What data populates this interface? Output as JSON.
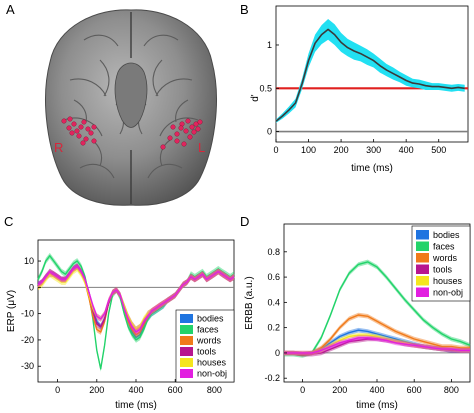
{
  "panels": {
    "A": "A",
    "B": "B",
    "C": "C",
    "D": "D"
  },
  "brain": {
    "right_label": "R",
    "left_label": "L",
    "electrode_color": "#e0245e"
  },
  "chart_data": [
    {
      "panel": "B",
      "type": "line",
      "xlabel": "time (ms)",
      "ylabel": "d'",
      "xlim": [
        0,
        590
      ],
      "ylim": [
        -0.12,
        1.45
      ],
      "xticks": [
        0,
        100,
        200,
        300,
        400,
        500
      ],
      "yticks": [
        0,
        0.5,
        1
      ],
      "series": [
        {
          "color": "#3a3a3a",
          "band_color": "#22e0f2",
          "x": [
            0,
            20,
            40,
            60,
            80,
            100,
            120,
            140,
            160,
            180,
            200,
            220,
            240,
            260,
            280,
            300,
            320,
            340,
            360,
            380,
            400,
            420,
            440,
            460,
            480,
            500,
            520,
            540,
            560,
            580
          ],
          "y": [
            0.12,
            0.18,
            0.25,
            0.33,
            0.55,
            0.82,
            1.02,
            1.12,
            1.18,
            1.12,
            1.03,
            0.97,
            0.93,
            0.9,
            0.86,
            0.82,
            0.76,
            0.71,
            0.67,
            0.63,
            0.59,
            0.56,
            0.55,
            0.53,
            0.52,
            0.52,
            0.51,
            0.5,
            0.51,
            0.5
          ],
          "err": [
            0.02,
            0.03,
            0.04,
            0.05,
            0.06,
            0.08,
            0.1,
            0.11,
            0.12,
            0.12,
            0.11,
            0.1,
            0.1,
            0.09,
            0.09,
            0.08,
            0.08,
            0.07,
            0.07,
            0.06,
            0.06,
            0.05,
            0.05,
            0.05,
            0.04,
            0.04,
            0.04,
            0.04,
            0.04,
            0.04
          ]
        }
      ],
      "reference_lines": [
        {
          "y": 0.5,
          "color": "#e0201f"
        },
        {
          "y": 0,
          "color": "#7f7f7f"
        }
      ]
    },
    {
      "panel": "C",
      "type": "line",
      "xlabel": "time (ms)",
      "ylabel": "ERP (μV)",
      "xlim": [
        -100,
        900
      ],
      "ylim": [
        -36,
        18
      ],
      "xticks": [
        0,
        200,
        400,
        600,
        800
      ],
      "yticks": [
        -30,
        -20,
        -10,
        0,
        10
      ],
      "legend_position": "bottom-right",
      "x": [
        -100,
        -80,
        -60,
        -40,
        -20,
        0,
        20,
        40,
        60,
        80,
        100,
        120,
        140,
        160,
        180,
        200,
        220,
        240,
        260,
        280,
        300,
        320,
        340,
        360,
        380,
        400,
        420,
        440,
        460,
        480,
        500,
        520,
        540,
        560,
        580,
        600,
        620,
        640,
        660,
        680,
        700,
        720,
        740,
        760,
        780,
        800,
        820,
        840,
        860,
        880,
        900
      ],
      "series": [
        {
          "name": "bodies",
          "color": "#1f74e0",
          "values": [
            1,
            2,
            4,
            6,
            5,
            4,
            3,
            3,
            5,
            7,
            8,
            6,
            3,
            -2,
            -8,
            -13,
            -15,
            -12,
            -6,
            -2,
            -1,
            -3,
            -8,
            -13,
            -17,
            -19,
            -18,
            -15,
            -12,
            -10,
            -9,
            -8,
            -7,
            -5,
            -4,
            -3,
            -1,
            1,
            2,
            4,
            3,
            4,
            5,
            3,
            4,
            5,
            6,
            5,
            4,
            3,
            4
          ]
        },
        {
          "name": "faces",
          "color": "#22d36a",
          "values": [
            3,
            6,
            10,
            12,
            10,
            8,
            6,
            5,
            7,
            9,
            10,
            8,
            4,
            -3,
            -12,
            -24,
            -31,
            -22,
            -10,
            -3,
            -1,
            -4,
            -10,
            -15,
            -18,
            -20,
            -19,
            -16,
            -12,
            -10,
            -9,
            -8,
            -7,
            -5,
            -4,
            -3,
            -1,
            1,
            2,
            5,
            4,
            5,
            6,
            4,
            5,
            6,
            7,
            6,
            5,
            4,
            5
          ]
        },
        {
          "name": "words",
          "color": "#f07a1a",
          "values": [
            0,
            2,
            4,
            6,
            5,
            4,
            3,
            3,
            5,
            7,
            8,
            6,
            2,
            -4,
            -11,
            -16,
            -17,
            -13,
            -6,
            -2,
            -1,
            -3,
            -8,
            -13,
            -16,
            -18,
            -17,
            -14,
            -11,
            -9,
            -8,
            -7,
            -6,
            -5,
            -4,
            -3,
            -1,
            1,
            2,
            4,
            3,
            4,
            5,
            3,
            4,
            5,
            6,
            5,
            4,
            3,
            4
          ]
        },
        {
          "name": "tools",
          "color": "#b7168f",
          "values": [
            1,
            2,
            4,
            5,
            5,
            4,
            3,
            3,
            5,
            7,
            8,
            6,
            3,
            -2,
            -9,
            -14,
            -15,
            -12,
            -6,
            -2,
            -1,
            -3,
            -7,
            -11,
            -14,
            -16,
            -15,
            -13,
            -10,
            -9,
            -8,
            -7,
            -6,
            -5,
            -4,
            -3,
            -1,
            1,
            2,
            4,
            3,
            4,
            5,
            3,
            4,
            5,
            6,
            5,
            4,
            3,
            4
          ]
        },
        {
          "name": "houses",
          "color": "#f5e61f",
          "values": [
            0,
            1,
            3,
            5,
            4,
            3,
            2,
            2,
            4,
            6,
            7,
            5,
            2,
            -3,
            -8,
            -11,
            -12,
            -10,
            -5,
            -2,
            -1,
            -3,
            -7,
            -11,
            -14,
            -16,
            -15,
            -12,
            -10,
            -9,
            -8,
            -7,
            -6,
            -5,
            -4,
            -3,
            -1,
            1,
            2,
            4,
            3,
            4,
            5,
            3,
            4,
            5,
            6,
            5,
            4,
            3,
            4
          ]
        },
        {
          "name": "non-obj",
          "color": "#e21fe0",
          "values": [
            1,
            2,
            4,
            6,
            5,
            4,
            3,
            3,
            5,
            7,
            8,
            6,
            3,
            -2,
            -7,
            -11,
            -12,
            -10,
            -5,
            -2,
            -1,
            -3,
            -8,
            -12,
            -15,
            -17,
            -16,
            -13,
            -11,
            -9,
            -8,
            -7,
            -6,
            -5,
            -4,
            -3,
            -1,
            1,
            2,
            4,
            3,
            4,
            5,
            3,
            4,
            5,
            6,
            5,
            4,
            3,
            4
          ]
        }
      ]
    },
    {
      "panel": "D",
      "type": "line",
      "xlabel": "time (ms)",
      "ylabel": "ERBB (a.u.)",
      "xlim": [
        -100,
        900
      ],
      "ylim": [
        -0.23,
        1.02
      ],
      "xticks": [
        0,
        200,
        400,
        600,
        800
      ],
      "yticks": [
        -0.2,
        0,
        0.2,
        0.4,
        0.6,
        0.8
      ],
      "legend_position": "top-right",
      "x": [
        -100,
        -50,
        0,
        50,
        100,
        150,
        200,
        250,
        300,
        350,
        400,
        450,
        500,
        550,
        600,
        650,
        700,
        750,
        800,
        850,
        900
      ],
      "series": [
        {
          "name": "bodies",
          "color": "#1f74e0",
          "values": [
            0.0,
            0.0,
            -0.01,
            0.0,
            0.03,
            0.08,
            0.13,
            0.16,
            0.18,
            0.17,
            0.15,
            0.13,
            0.11,
            0.09,
            0.07,
            0.05,
            0.04,
            0.03,
            0.02,
            0.02,
            0.02
          ]
        },
        {
          "name": "faces",
          "color": "#22d36a",
          "values": [
            -0.01,
            -0.01,
            -0.02,
            0.0,
            0.12,
            0.3,
            0.5,
            0.63,
            0.7,
            0.72,
            0.68,
            0.6,
            0.51,
            0.42,
            0.34,
            0.26,
            0.2,
            0.15,
            0.11,
            0.09,
            0.06
          ]
        },
        {
          "name": "words",
          "color": "#f07a1a",
          "values": [
            0.0,
            0.0,
            -0.01,
            0.0,
            0.04,
            0.11,
            0.2,
            0.27,
            0.3,
            0.29,
            0.25,
            0.21,
            0.17,
            0.14,
            0.11,
            0.09,
            0.07,
            0.05,
            0.05,
            0.04,
            0.04
          ]
        },
        {
          "name": "tools",
          "color": "#b7168f",
          "values": [
            0.0,
            0.0,
            -0.01,
            -0.01,
            0.0,
            0.03,
            0.06,
            0.09,
            0.1,
            0.11,
            0.11,
            0.1,
            0.09,
            0.07,
            0.06,
            0.05,
            0.04,
            0.03,
            0.02,
            0.02,
            0.02
          ]
        },
        {
          "name": "houses",
          "color": "#f5e61f",
          "values": [
            0.0,
            0.0,
            0.0,
            0.0,
            0.02,
            0.06,
            0.1,
            0.13,
            0.14,
            0.14,
            0.13,
            0.11,
            0.09,
            0.08,
            0.06,
            0.05,
            0.04,
            0.03,
            0.03,
            0.02,
            0.02
          ]
        },
        {
          "name": "non-obj",
          "color": "#e21fe0",
          "values": [
            0.0,
            0.0,
            0.0,
            0.0,
            0.02,
            0.05,
            0.08,
            0.1,
            0.12,
            0.12,
            0.11,
            0.1,
            0.08,
            0.07,
            0.06,
            0.05,
            0.04,
            0.03,
            0.03,
            0.02,
            0.02
          ]
        }
      ]
    }
  ]
}
